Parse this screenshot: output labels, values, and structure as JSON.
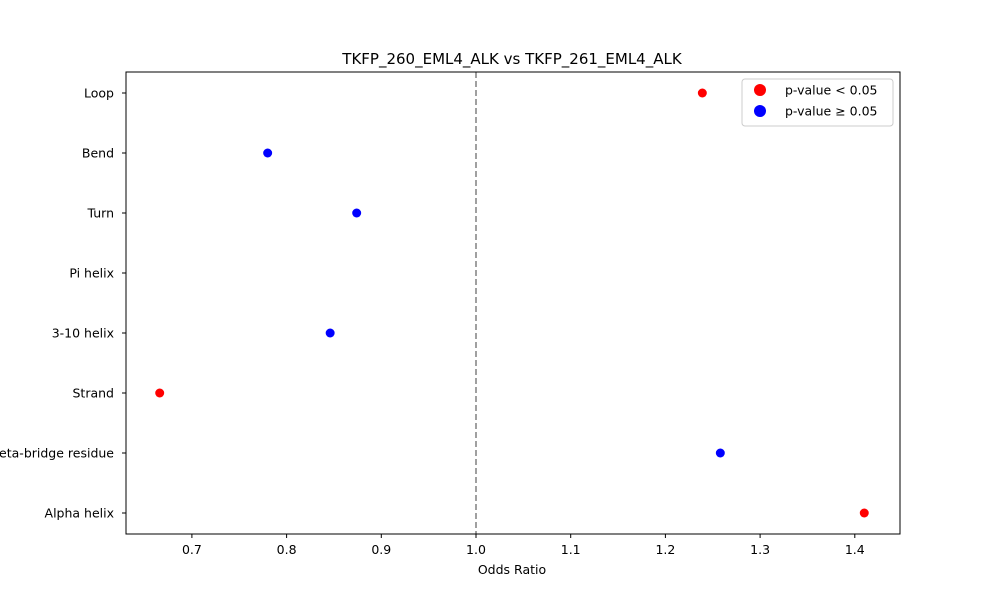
{
  "chart_data": {
    "type": "scatter",
    "title": "TKFP_260_EML4_ALK vs TKFP_261_EML4_ALK",
    "xlabel": "Odds Ratio",
    "ylabel": "",
    "xlim": [
      0.63,
      1.45
    ],
    "xticks": [
      "0.7",
      "0.8",
      "0.9",
      "1.0",
      "1.1",
      "1.2",
      "1.3",
      "1.4"
    ],
    "reference_line": 1.0,
    "categories": [
      "Loop",
      "Bend",
      "Turn",
      "Pi helix",
      "3-10 helix",
      "Strand",
      "Beta-bridge residue",
      "Alpha helix"
    ],
    "points": [
      {
        "category": "Loop",
        "value": 1.239,
        "significant": true
      },
      {
        "category": "Bend",
        "value": 0.78,
        "significant": false
      },
      {
        "category": "Turn",
        "value": 0.874,
        "significant": false
      },
      {
        "category": "Pi helix",
        "value": null,
        "significant": null
      },
      {
        "category": "3-10 helix",
        "value": 0.846,
        "significant": false
      },
      {
        "category": "Strand",
        "value": 0.666,
        "significant": true
      },
      {
        "category": "Beta-bridge residue",
        "value": 1.258,
        "significant": false
      },
      {
        "category": "Alpha helix",
        "value": 1.41,
        "significant": true
      }
    ],
    "legend": [
      {
        "label": "p-value < 0.05",
        "color": "#ff0000"
      },
      {
        "label": "p-value ≥ 0.05",
        "color": "#0000ff"
      }
    ],
    "legend_position": "upper right"
  }
}
